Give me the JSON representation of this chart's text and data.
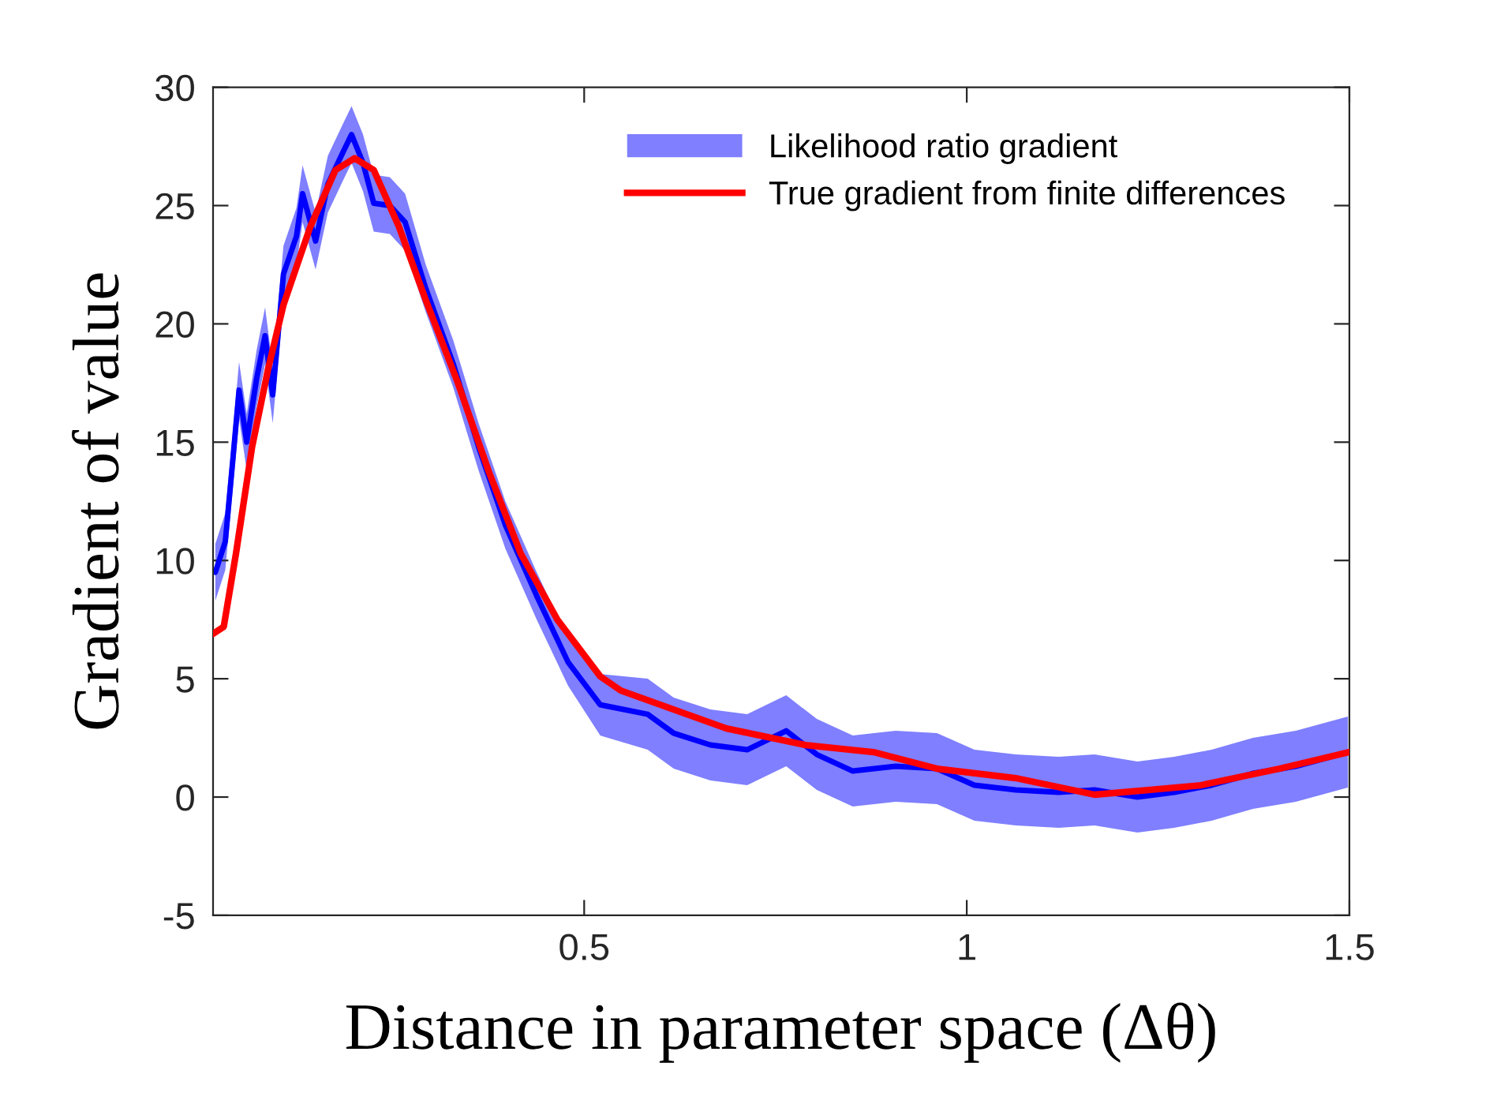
{
  "chart_data": {
    "type": "line",
    "xlabel": "Distance in parameter space (Δθ)",
    "ylabel": "Gradient of value",
    "xlim": [
      0.015,
      1.5
    ],
    "ylim": [
      -5,
      30
    ],
    "xticks": [
      0.5,
      1,
      1.5
    ],
    "yticks": [
      -5,
      0,
      5,
      10,
      15,
      20,
      25,
      30
    ],
    "grid": false,
    "legend": "top right",
    "line_style": "solid",
    "marker": "none",
    "series": [
      {
        "name": "Likelihood ratio gradient",
        "color": "#0000ff",
        "x": [
          0.018,
          0.031,
          0.041,
          0.049,
          0.059,
          0.072,
          0.083,
          0.093,
          0.107,
          0.124,
          0.132,
          0.149,
          0.165,
          0.184,
          0.196,
          0.211,
          0.225,
          0.246,
          0.266,
          0.293,
          0.329,
          0.362,
          0.397,
          0.438,
          0.479,
          0.521,
          0.583,
          0.617,
          0.665,
          0.713,
          0.764,
          0.804,
          0.851,
          0.907,
          0.961,
          1.01,
          1.064,
          1.12,
          1.167,
          1.223,
          1.271,
          1.32,
          1.374,
          1.43,
          1.498
        ],
        "values": [
          9.5,
          10.8,
          14.3,
          17.2,
          15.0,
          17.7,
          19.5,
          17.0,
          22.1,
          23.7,
          25.5,
          23.5,
          25.9,
          27.2,
          28.0,
          26.8,
          25.1,
          25.0,
          24.3,
          21.5,
          18.3,
          14.8,
          11.5,
          8.5,
          5.7,
          3.9,
          3.5,
          2.7,
          2.2,
          2.0,
          2.8,
          1.8,
          1.1,
          1.3,
          1.2,
          0.5,
          0.3,
          0.2,
          0.3,
          0.0,
          0.2,
          0.5,
          1.0,
          1.3,
          1.9
        ],
        "lower": [
          8.3,
          9.6,
          13.1,
          16.0,
          13.8,
          16.5,
          18.3,
          15.8,
          20.9,
          22.5,
          24.3,
          22.3,
          24.7,
          26.0,
          26.8,
          25.6,
          23.9,
          23.8,
          23.1,
          20.5,
          17.3,
          13.8,
          10.5,
          7.5,
          4.7,
          2.6,
          2.0,
          1.2,
          0.7,
          0.5,
          1.3,
          0.3,
          -0.4,
          -0.2,
          -0.3,
          -1.0,
          -1.2,
          -1.3,
          -1.2,
          -1.5,
          -1.3,
          -1.0,
          -0.5,
          -0.2,
          0.4
        ],
        "upper": [
          10.7,
          12.0,
          15.5,
          18.4,
          16.2,
          18.9,
          20.7,
          18.2,
          23.3,
          24.9,
          26.7,
          24.7,
          27.1,
          28.4,
          29.2,
          28.0,
          26.3,
          26.2,
          25.5,
          22.5,
          19.3,
          15.8,
          12.5,
          9.5,
          6.7,
          5.2,
          5.0,
          4.2,
          3.7,
          3.5,
          4.3,
          3.3,
          2.6,
          2.8,
          2.7,
          2.0,
          1.8,
          1.7,
          1.8,
          1.5,
          1.7,
          2.0,
          2.5,
          2.8,
          3.4
        ]
      },
      {
        "name": "True gradient from finite differences",
        "color": "#ff0000",
        "x": [
          0.015,
          0.029,
          0.045,
          0.066,
          0.087,
          0.107,
          0.142,
          0.175,
          0.2,
          0.225,
          0.258,
          0.293,
          0.335,
          0.376,
          0.417,
          0.465,
          0.521,
          0.548,
          0.617,
          0.686,
          0.789,
          0.878,
          0.961,
          1.064,
          1.167,
          1.237,
          1.306,
          1.409,
          1.5
        ],
        "values": [
          6.9,
          7.2,
          10.3,
          14.8,
          18.1,
          20.8,
          24.1,
          26.5,
          27.0,
          26.5,
          24.1,
          21.0,
          17.5,
          13.7,
          10.3,
          7.5,
          5.1,
          4.5,
          3.7,
          2.9,
          2.2,
          1.9,
          1.2,
          0.8,
          0.1,
          0.3,
          0.5,
          1.2,
          1.9
        ]
      }
    ]
  }
}
